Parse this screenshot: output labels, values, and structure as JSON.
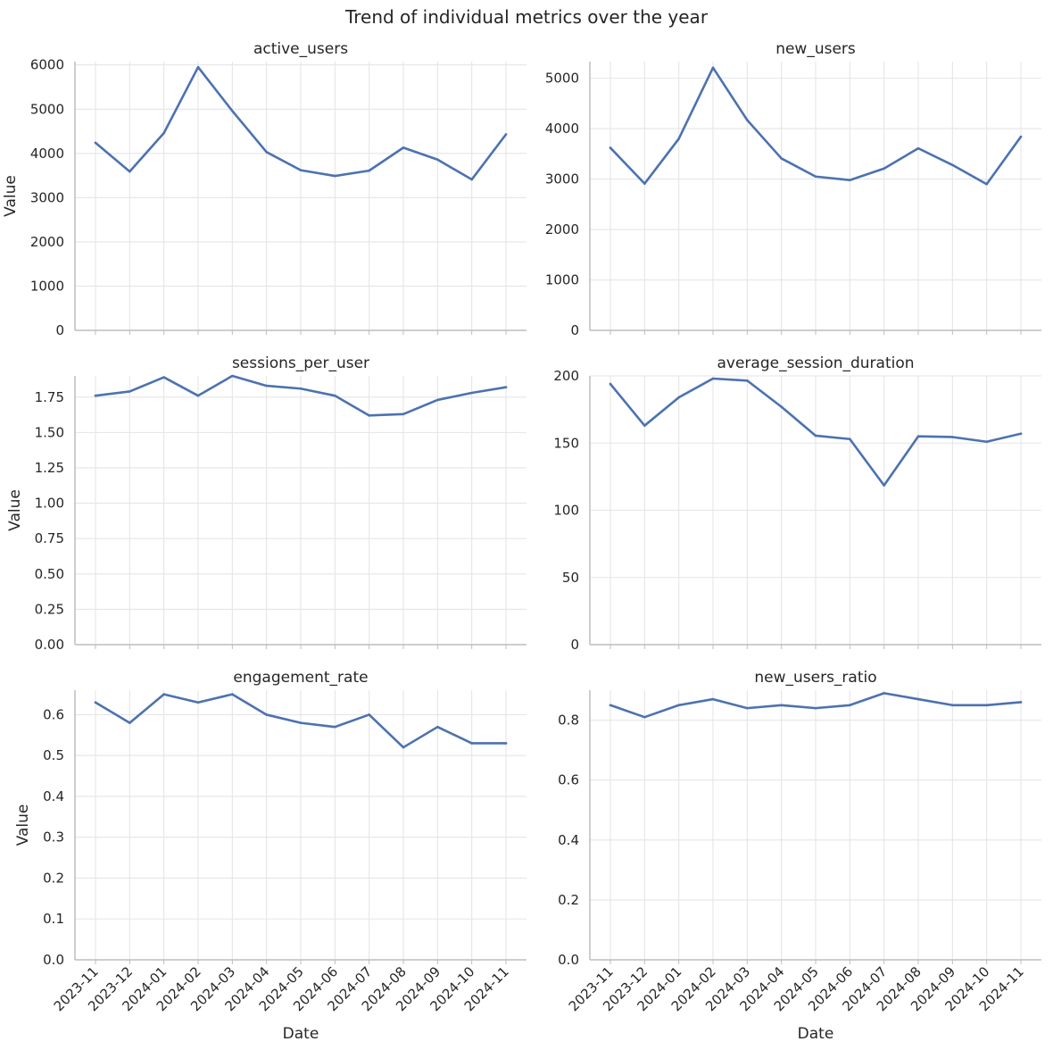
{
  "figure": {
    "title": "Trend of individual metrics over the year",
    "xlabel": "Date",
    "ylabel": "Value",
    "line_color": "#4c72b0"
  },
  "chart_data": [
    {
      "type": "line",
      "title": "active_users",
      "x": [
        "2023-11",
        "2023-12",
        "2024-01",
        "2024-02",
        "2024-03",
        "2024-04",
        "2024-05",
        "2024-06",
        "2024-07",
        "2024-08",
        "2024-09",
        "2024-10",
        "2024-11"
      ],
      "values": [
        4240,
        3590,
        4460,
        5950,
        4960,
        4030,
        3620,
        3490,
        3610,
        4130,
        3860,
        3410,
        4430
      ],
      "ylim": [
        0,
        6075
      ],
      "yticks": [
        0,
        1000,
        2000,
        3000,
        4000,
        5000,
        6000
      ],
      "ytick_labels": [
        "0",
        "1000",
        "2000",
        "3000",
        "4000",
        "5000",
        "6000"
      ],
      "grid": true
    },
    {
      "type": "line",
      "title": "new_users",
      "x": [
        "2023-11",
        "2023-12",
        "2024-01",
        "2024-02",
        "2024-03",
        "2024-04",
        "2024-05",
        "2024-06",
        "2024-07",
        "2024-08",
        "2024-09",
        "2024-10",
        "2024-11"
      ],
      "values": [
        3620,
        2910,
        3800,
        5210,
        4170,
        3410,
        3050,
        2980,
        3210,
        3610,
        3280,
        2900,
        3840
      ],
      "ylim": [
        0,
        5330
      ],
      "yticks": [
        0,
        1000,
        2000,
        3000,
        4000,
        5000
      ],
      "ytick_labels": [
        "0",
        "1000",
        "2000",
        "3000",
        "4000",
        "5000"
      ],
      "grid": true
    },
    {
      "type": "line",
      "title": "sessions_per_user",
      "x": [
        "2023-11",
        "2023-12",
        "2024-01",
        "2024-02",
        "2024-03",
        "2024-04",
        "2024-05",
        "2024-06",
        "2024-07",
        "2024-08",
        "2024-09",
        "2024-10",
        "2024-11"
      ],
      "values": [
        1.76,
        1.79,
        1.89,
        1.76,
        1.9,
        1.83,
        1.81,
        1.76,
        1.62,
        1.63,
        1.73,
        1.78,
        1.82
      ],
      "ylim": [
        0,
        1.9
      ],
      "yticks": [
        0,
        0.25,
        0.5,
        0.75,
        1.0,
        1.25,
        1.5,
        1.75
      ],
      "ytick_labels": [
        "0.00",
        "0.25",
        "0.50",
        "0.75",
        "1.00",
        "1.25",
        "1.50",
        "1.75"
      ],
      "grid": true
    },
    {
      "type": "line",
      "title": "average_session_duration",
      "x": [
        "2023-11",
        "2023-12",
        "2024-01",
        "2024-02",
        "2024-03",
        "2024-04",
        "2024-05",
        "2024-06",
        "2024-07",
        "2024-08",
        "2024-09",
        "2024-10",
        "2024-11"
      ],
      "values": [
        194,
        163,
        184,
        198,
        196.5,
        177,
        155.5,
        153,
        118.5,
        155,
        154.5,
        151,
        157
      ],
      "ylim": [
        0,
        200
      ],
      "yticks": [
        0,
        50,
        100,
        150,
        200
      ],
      "ytick_labels": [
        "0",
        "50",
        "100",
        "150",
        "200"
      ],
      "grid": true
    },
    {
      "type": "line",
      "title": "engagement_rate",
      "x": [
        "2023-11",
        "2023-12",
        "2024-01",
        "2024-02",
        "2024-03",
        "2024-04",
        "2024-05",
        "2024-06",
        "2024-07",
        "2024-08",
        "2024-09",
        "2024-10",
        "2024-11"
      ],
      "values": [
        0.63,
        0.58,
        0.65,
        0.63,
        0.65,
        0.6,
        0.58,
        0.57,
        0.6,
        0.52,
        0.57,
        0.53,
        0.53
      ],
      "ylim": [
        0,
        0.66
      ],
      "yticks": [
        0,
        0.1,
        0.2,
        0.3,
        0.4,
        0.5,
        0.6
      ],
      "ytick_labels": [
        "0.0",
        "0.1",
        "0.2",
        "0.3",
        "0.4",
        "0.5",
        "0.6"
      ],
      "grid": true
    },
    {
      "type": "line",
      "title": "new_users_ratio",
      "x": [
        "2023-11",
        "2023-12",
        "2024-01",
        "2024-02",
        "2024-03",
        "2024-04",
        "2024-05",
        "2024-06",
        "2024-07",
        "2024-08",
        "2024-09",
        "2024-10",
        "2024-11"
      ],
      "values": [
        0.85,
        0.81,
        0.85,
        0.87,
        0.84,
        0.85,
        0.84,
        0.85,
        0.89,
        0.87,
        0.85,
        0.85,
        0.86
      ],
      "ylim": [
        0,
        0.9
      ],
      "yticks": [
        0,
        0.2,
        0.4,
        0.6,
        0.8
      ],
      "ytick_labels": [
        "0.0",
        "0.2",
        "0.4",
        "0.6",
        "0.8"
      ],
      "grid": true
    }
  ]
}
